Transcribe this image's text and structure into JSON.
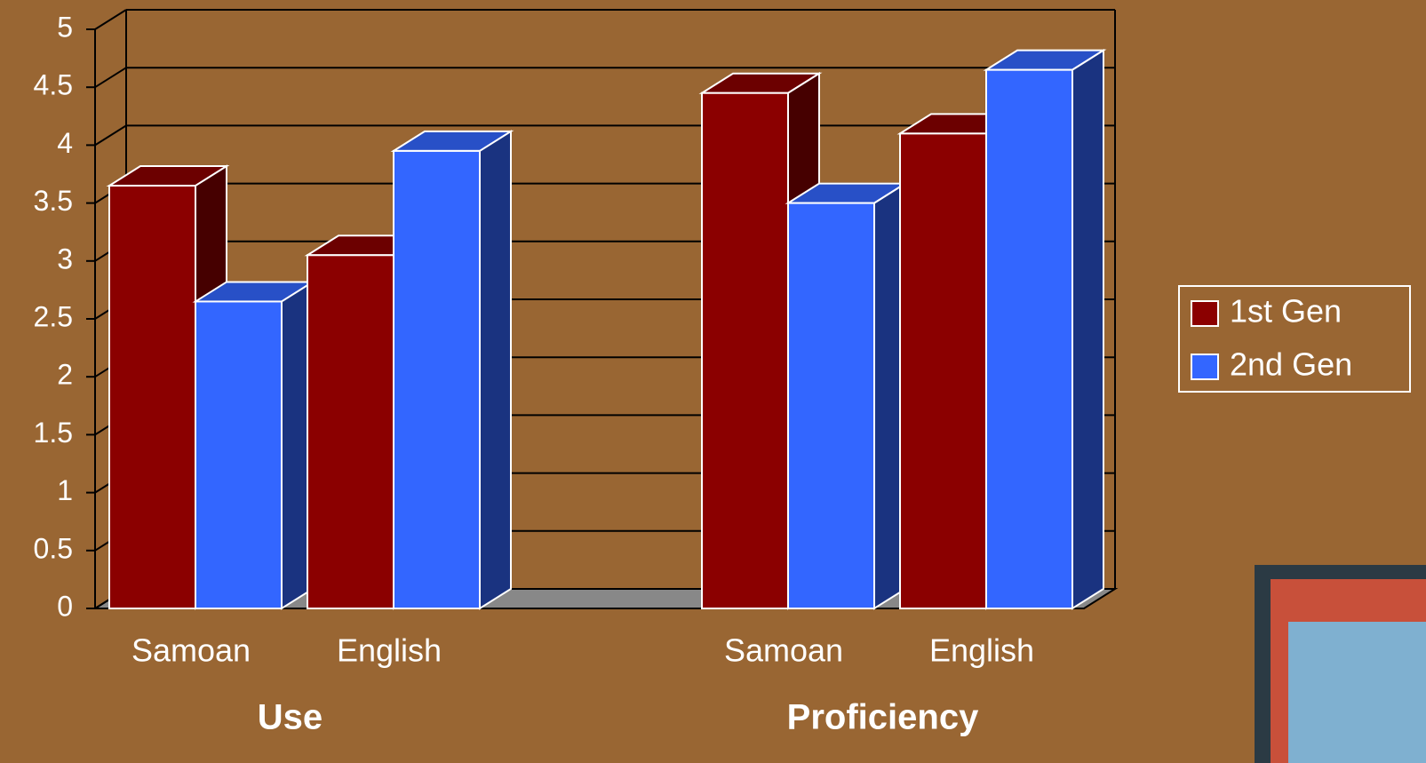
{
  "chart_data": {
    "type": "bar3d",
    "categories": [
      "Samoan",
      "English",
      "Samoan",
      "English"
    ],
    "group_labels": [
      "Use",
      "Proficiency"
    ],
    "series": [
      {
        "name": "1st Gen",
        "color": "#8b0000",
        "values": [
          3.65,
          3.05,
          4.45,
          4.1
        ]
      },
      {
        "name": "2nd Gen",
        "color": "#3366ff",
        "values": [
          2.65,
          3.95,
          3.5,
          4.65
        ]
      }
    ],
    "ylim": [
      0,
      5
    ],
    "yticks": [
      0,
      0.5,
      1,
      1.5,
      2,
      2.5,
      3,
      3.5,
      4,
      4.5,
      5
    ],
    "grid": true
  }
}
